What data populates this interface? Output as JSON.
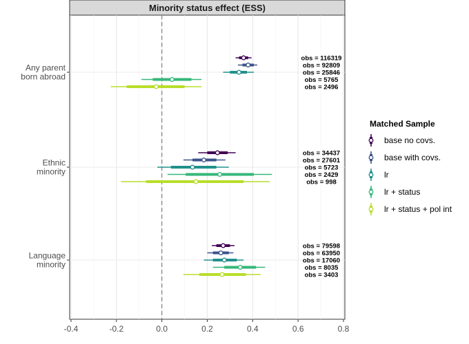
{
  "chart_data": {
    "type": "forest",
    "title": "Minority status effect (ESS)",
    "xlim": [
      -0.4,
      0.8
    ],
    "x_ticks": [
      "-0.4",
      "-0.2",
      "0.0",
      "0.2",
      "0.4",
      "0.6",
      "0.8"
    ],
    "reference_line": 0,
    "grid": true,
    "legend": {
      "title": "Matched Sample",
      "position": "right",
      "entries": [
        "base no covs.",
        "base with covs.",
        "lr",
        "lr + status",
        "lr + status + pol int"
      ]
    },
    "series_colors": [
      "#440154",
      "#3b528b",
      "#21908c",
      "#35b779",
      "#b8de29"
    ],
    "groups": [
      {
        "label": "Any parent\nborn abroad",
        "estimates": [
          {
            "series": "base no covs.",
            "est": 0.36,
            "ci_inner": [
              0.34,
              0.38
            ],
            "ci_outer": [
              0.325,
              0.395
            ],
            "obs": "obs = 116319"
          },
          {
            "series": "base with covs.",
            "est": 0.38,
            "ci_inner": [
              0.355,
              0.405
            ],
            "ci_outer": [
              0.335,
              0.42
            ],
            "obs": "obs = 92809"
          },
          {
            "series": "lr",
            "est": 0.34,
            "ci_inner": [
              0.3,
              0.375
            ],
            "ci_outer": [
              0.27,
              0.405
            ],
            "obs": "obs = 25846"
          },
          {
            "series": "lr + status",
            "est": 0.045,
            "ci_inner": [
              -0.04,
              0.13
            ],
            "ci_outer": [
              -0.09,
              0.175
            ],
            "obs": "obs = 5765"
          },
          {
            "series": "lr + status + pol int",
            "est": -0.025,
            "ci_inner": [
              -0.155,
              0.1
            ],
            "ci_outer": [
              -0.225,
              0.175
            ],
            "obs": "obs = 2496"
          }
        ]
      },
      {
        "label": "Ethnic\nminority",
        "estimates": [
          {
            "series": "base no covs.",
            "est": 0.245,
            "ci_inner": [
              0.2,
              0.29
            ],
            "ci_outer": [
              0.16,
              0.325
            ],
            "obs": "obs = 34437"
          },
          {
            "series": "base with covs.",
            "est": 0.185,
            "ci_inner": [
              0.135,
              0.24
            ],
            "ci_outer": [
              0.095,
              0.28
            ],
            "obs": "obs = 27601"
          },
          {
            "series": "lr",
            "est": 0.135,
            "ci_inner": [
              0.04,
              0.24
            ],
            "ci_outer": [
              -0.02,
              0.295
            ],
            "obs": "obs = 5723"
          },
          {
            "series": "lr + status",
            "est": 0.255,
            "ci_inner": [
              0.105,
              0.405
            ],
            "ci_outer": [
              0.025,
              0.485
            ],
            "obs": "obs = 2429"
          },
          {
            "series": "lr + status + pol int",
            "est": 0.15,
            "ci_inner": [
              -0.07,
              0.36
            ],
            "ci_outer": [
              -0.18,
              0.475
            ],
            "obs": "obs = 998"
          }
        ]
      },
      {
        "label": "Language\nminority",
        "estimates": [
          {
            "series": "base no covs.",
            "est": 0.27,
            "ci_inner": [
              0.24,
              0.3
            ],
            "ci_outer": [
              0.22,
              0.32
            ],
            "obs": "obs = 79598"
          },
          {
            "series": "base with covs.",
            "est": 0.26,
            "ci_inner": [
              0.225,
              0.295
            ],
            "ci_outer": [
              0.2,
              0.315
            ],
            "obs": "obs = 63950"
          },
          {
            "series": "lr",
            "est": 0.275,
            "ci_inner": [
              0.225,
              0.33
            ],
            "ci_outer": [
              0.185,
              0.36
            ],
            "obs": "obs = 17060"
          },
          {
            "series": "lr + status",
            "est": 0.345,
            "ci_inner": [
              0.275,
              0.415
            ],
            "ci_outer": [
              0.225,
              0.455
            ],
            "obs": "obs = 8035"
          },
          {
            "series": "lr + status + pol int",
            "est": 0.265,
            "ci_inner": [
              0.165,
              0.37
            ],
            "ci_outer": [
              0.095,
              0.435
            ],
            "obs": "obs = 3403"
          }
        ]
      }
    ]
  }
}
